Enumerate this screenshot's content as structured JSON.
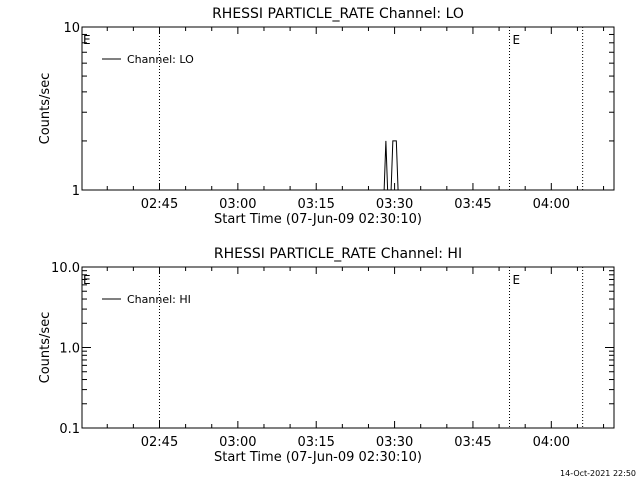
{
  "footer": {
    "timestamp": "14-Oct-2021 22:50"
  },
  "chart_data": [
    {
      "type": "line",
      "title": "RHESSI PARTICLE_RATE Channel: LO",
      "xlabel": "Start Time (07-Jun-09 02:30:10)",
      "ylabel": "Counts/sec",
      "yscale": "log",
      "xlim": [
        "02:30:10",
        "04:12:00"
      ],
      "ylim": [
        1,
        10
      ],
      "x_ticks": [
        "02:45",
        "03:00",
        "03:15",
        "03:30",
        "03:45",
        "04:00"
      ],
      "y_ticks": [
        "1",
        "10"
      ],
      "legend": {
        "placement": "top-left",
        "entries": [
          "Channel: LO"
        ]
      },
      "event_markers": [
        {
          "time": "02:45",
          "style": "dotted",
          "label": ""
        },
        {
          "time": "03:52",
          "style": "dotted",
          "label": "E"
        },
        {
          "time": "04:06",
          "style": "dotted",
          "label": ""
        }
      ],
      "edge_marker_label": "E",
      "series": [
        {
          "name": "Channel: LO",
          "points": [
            [
              "03:28:00",
              1
            ],
            [
              "03:28:20",
              2
            ],
            [
              "03:28:40",
              1
            ],
            [
              "03:29:20",
              1
            ],
            [
              "03:29:40",
              2
            ],
            [
              "03:30:20",
              2
            ],
            [
              "03:30:40",
              1
            ]
          ]
        }
      ]
    },
    {
      "type": "line",
      "title": "RHESSI PARTICLE_RATE Channel: HI",
      "xlabel": "Start Time (07-Jun-09 02:30:10)",
      "ylabel": "Counts/sec",
      "yscale": "log",
      "xlim": [
        "02:30:10",
        "04:12:00"
      ],
      "ylim": [
        0.1,
        10
      ],
      "x_ticks": [
        "02:45",
        "03:00",
        "03:15",
        "03:30",
        "03:45",
        "04:00"
      ],
      "y_ticks": [
        "0.1",
        "1.0",
        "10.0"
      ],
      "legend": {
        "placement": "top-left",
        "entries": [
          "Channel: HI"
        ]
      },
      "event_markers": [
        {
          "time": "02:45",
          "style": "dotted",
          "label": ""
        },
        {
          "time": "03:52",
          "style": "dotted",
          "label": "E"
        },
        {
          "time": "04:06",
          "style": "dotted",
          "label": ""
        }
      ],
      "edge_marker_label": "E",
      "series": [
        {
          "name": "Channel: HI",
          "points": []
        }
      ]
    }
  ]
}
